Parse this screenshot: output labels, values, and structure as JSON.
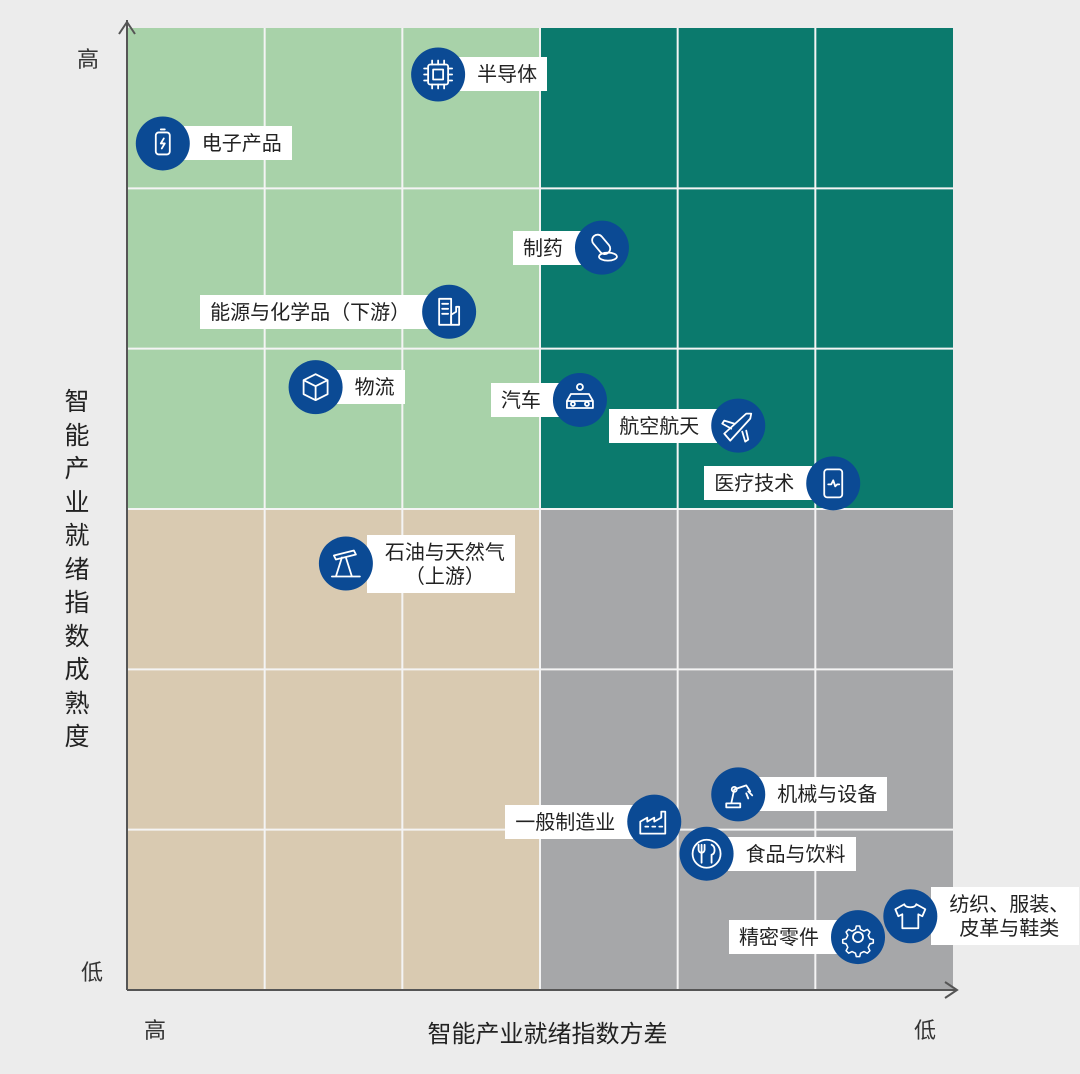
{
  "chart_data": {
    "type": "scatter",
    "title": "",
    "xlabel": "智能产业就绪指数方差",
    "ylabel": "智能产业就绪指数成熟度",
    "x_ticks": {
      "low_end": "高",
      "high_end": "低"
    },
    "y_ticks": {
      "low_end": "低",
      "high_end": "高"
    },
    "xlim": [
      0,
      6
    ],
    "ylim": [
      0,
      6
    ],
    "grid": true,
    "quadrant_split": {
      "x": 3,
      "y": 3
    },
    "quadrant_colors": {
      "top_left": "#a8d2a9",
      "top_right": "#0b7a6d",
      "bottom_left": "#d9cab1",
      "bottom_right": "#a6a7a9"
    },
    "marker_color": "#0b4a94",
    "points": [
      {
        "label": "半导体",
        "x": 2.26,
        "y": 5.71,
        "icon": "chip-icon",
        "side": "right"
      },
      {
        "label": "电子产品",
        "x": 0.26,
        "y": 5.28,
        "icon": "battery-icon",
        "side": "right"
      },
      {
        "label": "制药",
        "x": 3.45,
        "y": 4.63,
        "icon": "pill-icon",
        "side": "left"
      },
      {
        "label": "能源与化学品（下游）",
        "x": 2.34,
        "y": 4.23,
        "icon": "factory-building-icon",
        "side": "left"
      },
      {
        "label": "物流",
        "x": 1.37,
        "y": 3.76,
        "icon": "box-icon",
        "side": "right"
      },
      {
        "label": "汽车",
        "x": 3.29,
        "y": 3.68,
        "icon": "car-icon",
        "side": "left"
      },
      {
        "label": "航空航天",
        "x": 4.44,
        "y": 3.52,
        "icon": "airplane-icon",
        "side": "left"
      },
      {
        "label": "医疗技术",
        "x": 5.13,
        "y": 3.16,
        "icon": "medical-device-icon",
        "side": "left"
      },
      {
        "label": "石油与天然气\n（上游）",
        "x": 1.59,
        "y": 2.66,
        "icon": "oil-pump-icon",
        "side": "right"
      },
      {
        "label": "机械与设备",
        "x": 4.44,
        "y": 1.22,
        "icon": "robot-arm-icon",
        "side": "right"
      },
      {
        "label": "一般制造业",
        "x": 3.83,
        "y": 1.05,
        "icon": "factory-icon",
        "side": "left"
      },
      {
        "label": "食品与饮料",
        "x": 4.21,
        "y": 0.85,
        "icon": "cutlery-icon",
        "side": "right"
      },
      {
        "label": "纺织、服装、\n皮革与鞋类",
        "x": 5.69,
        "y": 0.46,
        "icon": "tshirt-icon",
        "side": "right"
      },
      {
        "label": "精密零件",
        "x": 5.31,
        "y": 0.33,
        "icon": "gear-icon",
        "side": "left"
      }
    ]
  }
}
